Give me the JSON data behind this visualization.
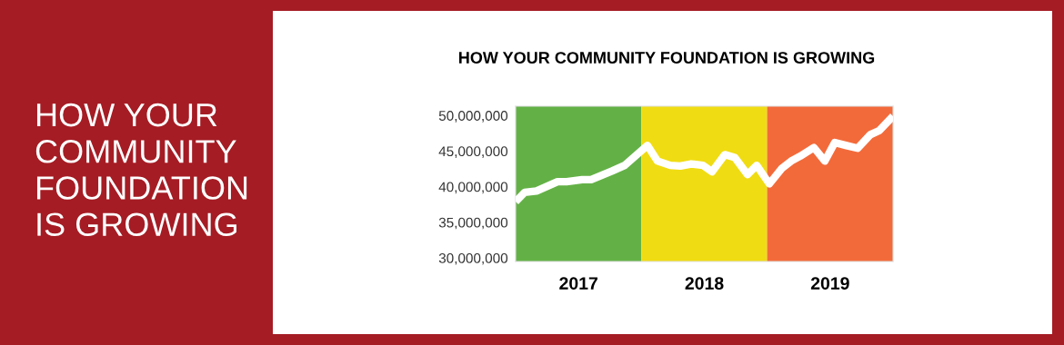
{
  "chart_data": {
    "type": "line",
    "title": "HOW YOUR COMMUNITY FOUNDATION IS GROWING",
    "annotations": [
      "HOW YOUR\nCOMMUNITY\nFOUNDATION\nIS GROWING"
    ],
    "x": [
      2017.0,
      2017.072,
      2017.166,
      2017.333,
      2017.405,
      2017.528,
      2017.6,
      2017.766,
      2017.867,
      2018.048,
      2018.128,
      2018.229,
      2018.308,
      2018.395,
      2018.489,
      2018.561,
      2018.663,
      2018.742,
      2018.843,
      2018.916,
      2019.017,
      2019.118,
      2019.19,
      2019.263,
      2019.371,
      2019.458,
      2019.537,
      2019.624,
      2019.718,
      2019.819,
      2019.892,
      2020.0
    ],
    "series": [
      {
        "color": "#ffffff",
        "values": [
          37900000,
          39200000,
          39400000,
          40700000,
          40700000,
          41000000,
          41000000,
          42200000,
          43000000,
          45800000,
          43600000,
          43000000,
          42900000,
          43200000,
          43000000,
          42100000,
          44500000,
          44100000,
          41700000,
          43000000,
          40400000,
          42600000,
          43600000,
          44300000,
          45500000,
          43600000,
          46200000,
          45800000,
          45400000,
          47300000,
          47900000,
          49900000
        ]
      }
    ],
    "xlim": [
      2017,
      2020
    ],
    "xticks": [
      {
        "value": 2017.5,
        "label": "2017"
      },
      {
        "value": 2018.5,
        "label": "2018"
      },
      {
        "value": 2019.5,
        "label": "2019"
      }
    ],
    "ylim": [
      29500000,
      51300000
    ],
    "yticks": [
      {
        "value": 30000000,
        "label": "30,000,000"
      },
      {
        "value": 35000000,
        "label": "35,000,000"
      },
      {
        "value": 40000000,
        "label": "40,000,000"
      },
      {
        "value": 45000000,
        "label": "45,000,000"
      },
      {
        "value": 50000000,
        "label": "50,000,000"
      }
    ],
    "bands": [
      {
        "axis": "x",
        "from": 2017,
        "to": 2017.999,
        "color": "#63b146"
      },
      {
        "axis": "x",
        "from": 2017.999,
        "to": 2018.999,
        "color": "#f0dc12"
      },
      {
        "axis": "x",
        "from": 2018.999,
        "to": 2020,
        "color": "#f36a3a"
      }
    ],
    "grid": false,
    "marker": "none",
    "line_style": "solid"
  }
}
